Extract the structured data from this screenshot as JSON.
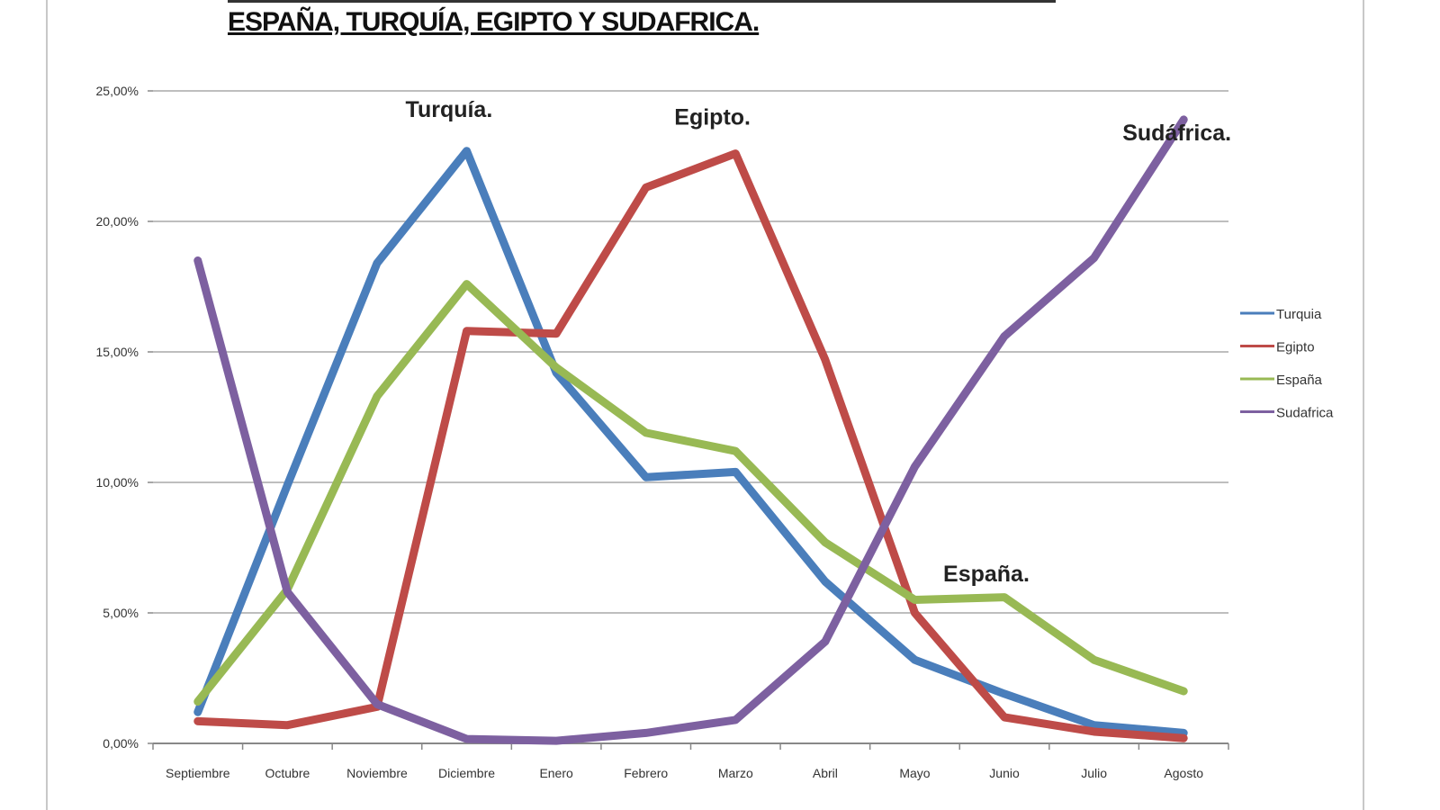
{
  "chart_data": {
    "type": "line",
    "title": "ESPAÑA, TURQUÍA, EGIPTO Y SUDAFRICA.",
    "xlabel": "",
    "ylabel": "",
    "ylim": [
      0,
      25
    ],
    "y_ticks": [
      "0,00%",
      "5,00%",
      "10,00%",
      "15,00%",
      "20,00%",
      "25,00%"
    ],
    "grid": true,
    "legend_placement": "right",
    "categories": [
      "Septiembre",
      "Octubre",
      "Noviembre",
      "Diciembre",
      "Enero",
      "Febrero",
      "Marzo",
      "Abril",
      "Mayo",
      "Junio",
      "Julio",
      "Agosto"
    ],
    "series": [
      {
        "name": "Turquia",
        "color": "#4a7ebb",
        "values": [
          1.2,
          9.9,
          18.4,
          22.7,
          14.2,
          10.2,
          10.4,
          6.2,
          3.2,
          1.9,
          0.7,
          0.4
        ]
      },
      {
        "name": "Egipto",
        "color": "#be4b48",
        "values": [
          0.85,
          0.7,
          1.4,
          15.8,
          15.7,
          21.3,
          22.6,
          14.7,
          5.0,
          1.0,
          0.45,
          0.2
        ]
      },
      {
        "name": "España",
        "color": "#98b954",
        "values": [
          1.6,
          5.9,
          13.3,
          17.6,
          14.4,
          11.9,
          11.2,
          7.7,
          5.5,
          5.6,
          3.2,
          2.0
        ]
      },
      {
        "name": "Sudafrica",
        "color": "#7d60a0",
        "values": [
          18.5,
          5.8,
          1.5,
          0.17,
          0.1,
          0.4,
          0.9,
          3.9,
          10.6,
          15.6,
          18.6,
          23.9
        ]
      }
    ],
    "annotations": [
      {
        "text": "Turquía.",
        "category": "Diciembre",
        "value": 24.0
      },
      {
        "text": "Egipto.",
        "category": "Marzo",
        "value": 23.7
      },
      {
        "text": "Sudáfrica.",
        "category": "Agosto",
        "value": 23.1
      },
      {
        "text": "España.",
        "category": "Junio",
        "value": 6.2
      }
    ]
  }
}
